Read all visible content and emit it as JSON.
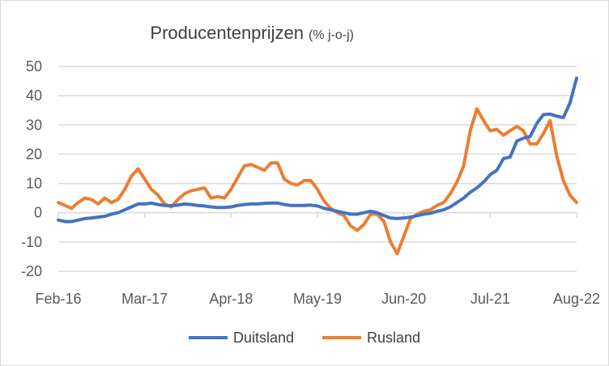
{
  "chart_data": {
    "type": "line",
    "title": "Producentenprijzen",
    "subtitle": "(% j-o-j)",
    "xlabel": "",
    "ylabel": "",
    "ylim": [
      -20,
      50
    ],
    "yticks": [
      "50",
      "40",
      "30",
      "20",
      "10",
      "0",
      "-10",
      "-20"
    ],
    "ytick_values": [
      50,
      40,
      30,
      20,
      10,
      0,
      -10,
      -20
    ],
    "xtick_labels": [
      "Feb-16",
      "Mar-17",
      "Apr-18",
      "May-19",
      "Jun-20",
      "Jul-21",
      "Aug-22"
    ],
    "xtick_index": [
      0,
      13,
      26,
      39,
      52,
      65,
      78
    ],
    "x_start": "Feb-16",
    "x_frequency": "monthly",
    "grid": true,
    "legend_position": "bottom",
    "series": [
      {
        "name": "Duitsland",
        "color": "#4472C4",
        "values": [
          -2.5,
          -3,
          -3,
          -2.5,
          -2,
          -1.8,
          -1.5,
          -1.2,
          -0.5,
          0,
          1,
          2,
          3,
          3,
          3.3,
          2.8,
          2.5,
          2.4,
          2.6,
          3,
          2.8,
          2.5,
          2.3,
          2,
          1.8,
          1.8,
          2,
          2.5,
          2.8,
          3,
          3,
          3.2,
          3.3,
          3.3,
          2.8,
          2.5,
          2.5,
          2.5,
          2.6,
          2.3,
          1.5,
          1,
          0.5,
          0,
          -0.5,
          -0.5,
          0,
          0.5,
          0,
          -1,
          -1.8,
          -2,
          -1.8,
          -1.5,
          -1,
          -0.5,
          -0.2,
          0.5,
          1,
          2,
          3.5,
          5,
          7,
          8.5,
          10.5,
          13,
          14.5,
          18.5,
          19,
          24.5,
          25.5,
          26,
          30.5,
          33.5,
          33.7,
          33,
          32.5,
          37.5,
          46
        ]
      },
      {
        "name": "Rusland",
        "color": "#ED7D31",
        "values": [
          3.5,
          2.5,
          1.5,
          3.5,
          5,
          4.5,
          3,
          5,
          3.5,
          4.5,
          8,
          12.5,
          15,
          11.5,
          8,
          6,
          3,
          2,
          4.5,
          6.5,
          7.5,
          8,
          8.5,
          5,
          5.5,
          5,
          8,
          12,
          16,
          16.5,
          15.5,
          14.5,
          17,
          17,
          11.5,
          10,
          9.5,
          11,
          11,
          8,
          4,
          1.5,
          0,
          -1,
          -4.5,
          -6,
          -4,
          -0.5,
          -0.5,
          -3,
          -10,
          -14,
          -8,
          -2,
          -0.5,
          0.5,
          1,
          2.5,
          3.5,
          6.5,
          10.5,
          16,
          28,
          35.5,
          31.5,
          28,
          28.5,
          26.5,
          28,
          29.5,
          28,
          23.5,
          23.5,
          27,
          31.5,
          19.5,
          11,
          6,
          3.5
        ]
      }
    ]
  }
}
